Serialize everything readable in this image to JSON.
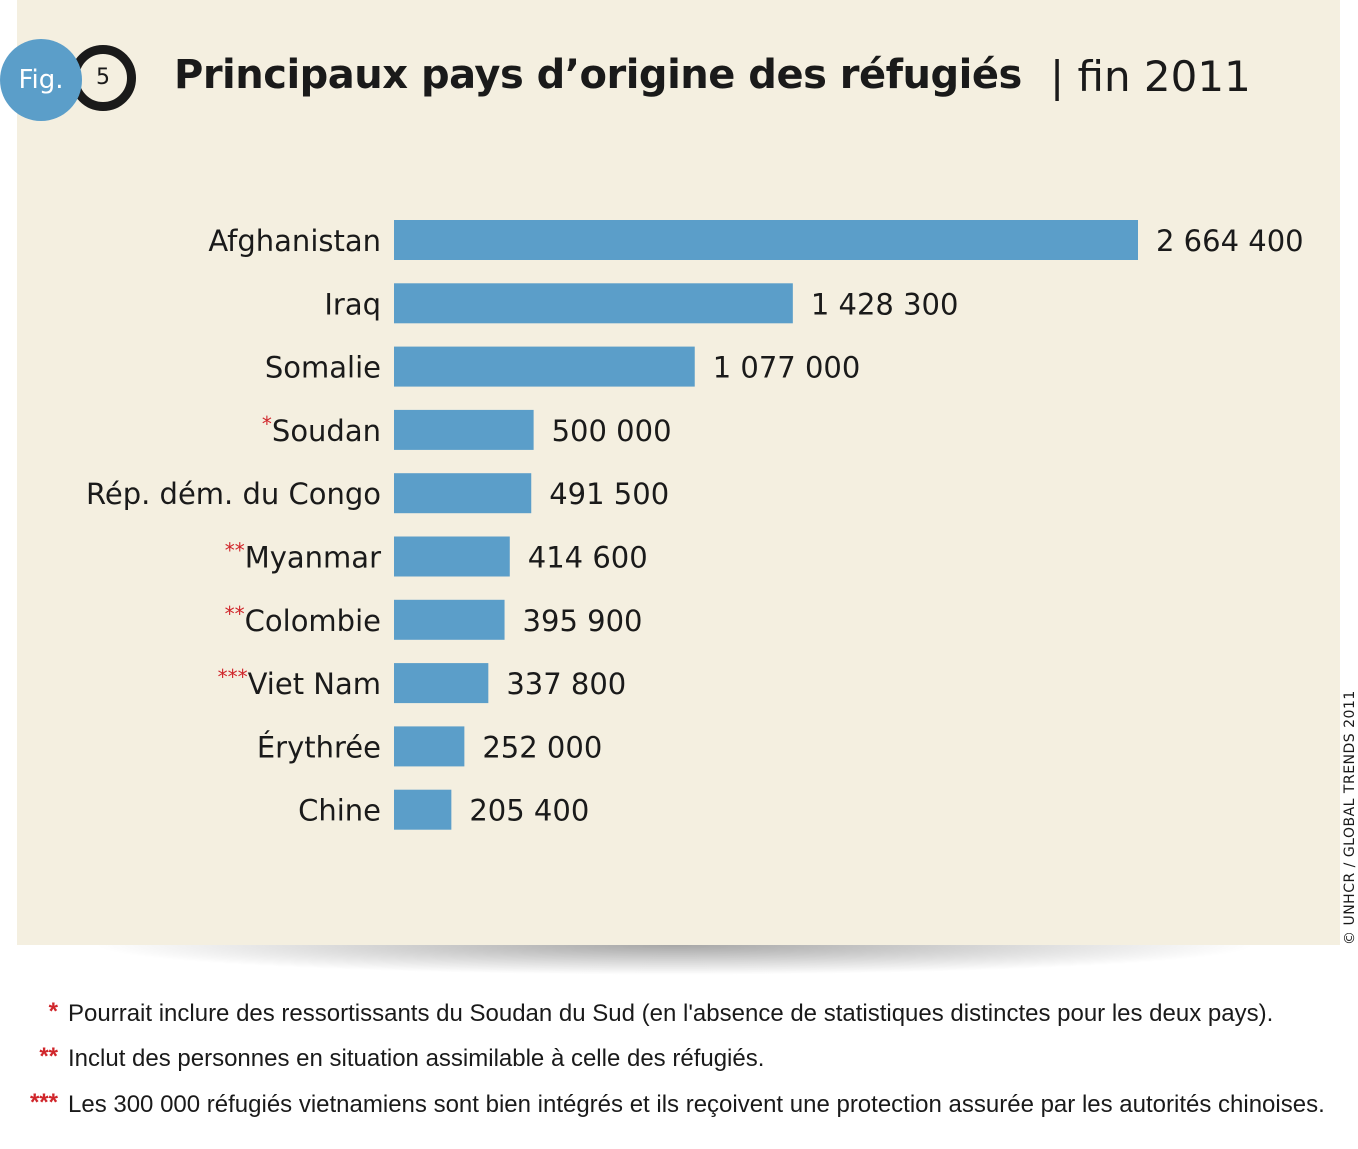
{
  "figure": {
    "badge": "Fig.",
    "number": "5"
  },
  "copyright": "© UNHCR / GLOBAL TRENDS 2011",
  "footnotes": [
    {
      "mark": "*",
      "text": "Pourrait inclure des ressortissants du Soudan du Sud (en l'absence de statistiques distinctes pour les deux pays)."
    },
    {
      "mark": "**",
      "text": "Inclut des personnes en situation assimilable à celle des réfugiés."
    },
    {
      "mark": "***",
      "text": "Les 300 000 réfugiés vietnamiens sont bien intégrés et ils reçoivent une protection assurée par les autorités chinoises."
    }
  ],
  "colors": {
    "bar": "#5b9ec9",
    "panel": "#f4efe0",
    "mark": "#d0262b"
  },
  "chart_data": {
    "type": "bar",
    "orientation": "horizontal",
    "title": "Principaux pays d’origine des réfugiés",
    "subtitle": "| fin 2011",
    "categories": [
      "Afghanistan",
      "Iraq",
      "Somalie",
      "Soudan",
      "Rép. dém. du Congo",
      "Myanmar",
      "Colombie",
      "Viet Nam",
      "Érythrée",
      "Chine"
    ],
    "marks": [
      "",
      "",
      "",
      "*",
      "",
      "**",
      "**",
      "***",
      "",
      ""
    ],
    "values": [
      2664400,
      1428300,
      1077000,
      500000,
      491500,
      414600,
      395900,
      337800,
      252000,
      205400
    ],
    "value_labels": [
      "2 664 400",
      "1 428 300",
      "1 077 000",
      "500 000",
      "491 500",
      "414 600",
      "395 900",
      "337 800",
      "252 000",
      "205 400"
    ],
    "xlabel": "",
    "ylabel": "",
    "xlim": [
      0,
      2664400
    ],
    "grid": false
  }
}
